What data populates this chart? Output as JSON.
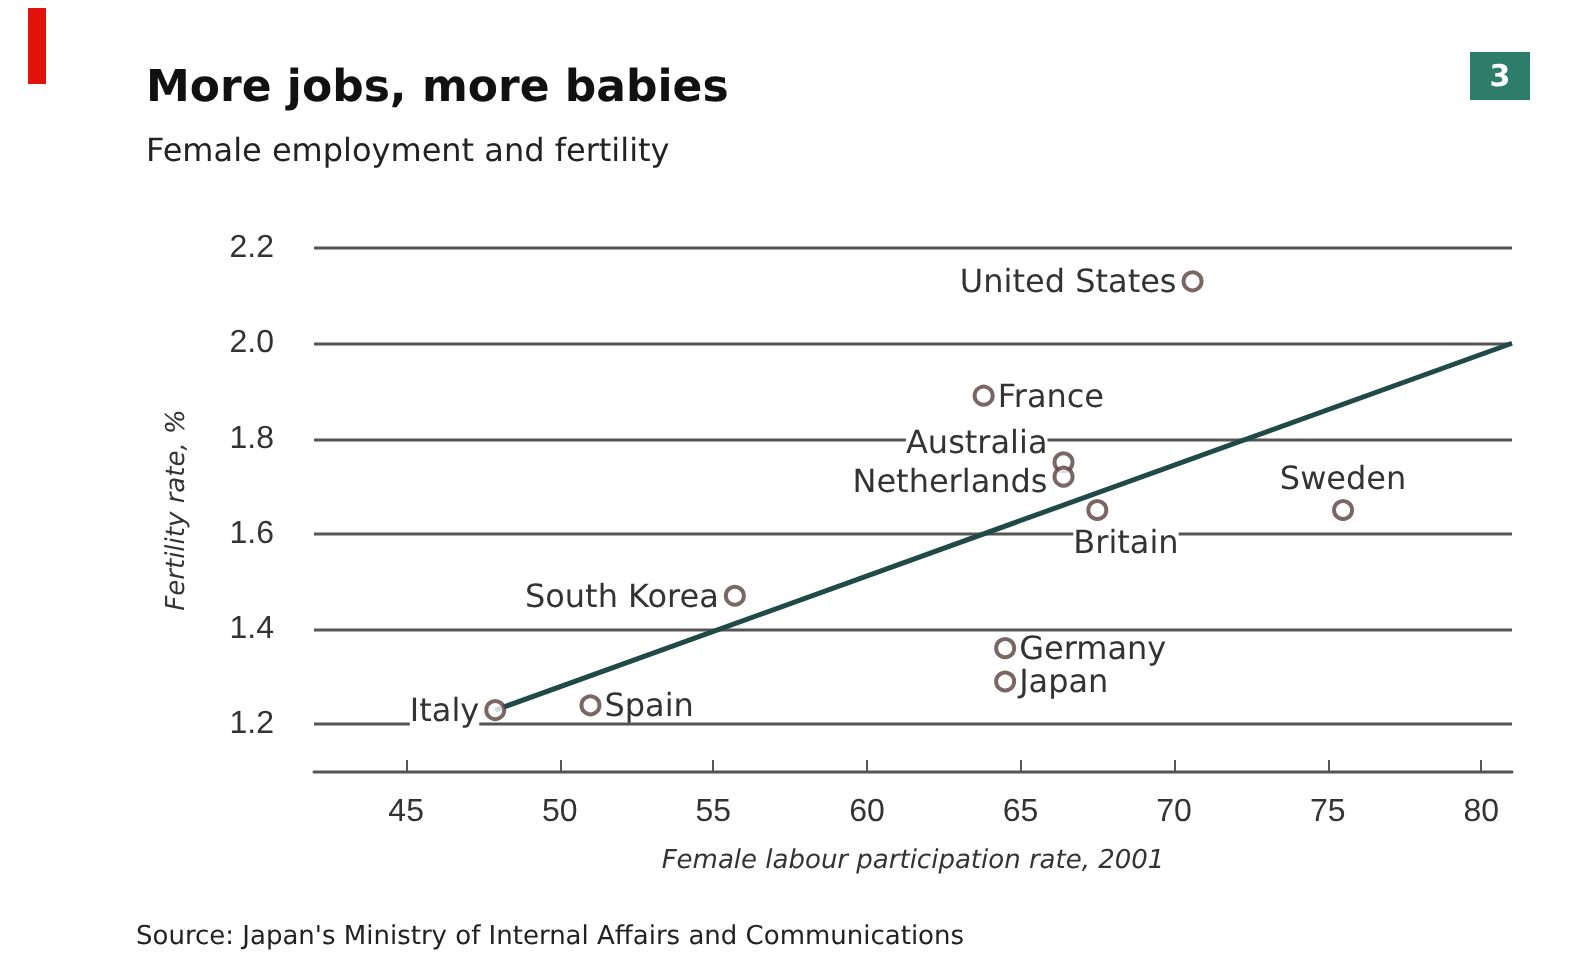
{
  "chart_data": {
    "type": "scatter",
    "title": "More jobs, more babies",
    "subtitle": "Female employment and fertility",
    "xlabel": "Female labour participation rate, 2001",
    "ylabel": "Fertility rate, %",
    "x": [
      70.6,
      63.8,
      66.4,
      66.4,
      67.5,
      75.5,
      55.7,
      64.5,
      64.5,
      47.9,
      51.0
    ],
    "series": [
      {
        "color": "#5a4040",
        "values": [
          2.13,
          1.89,
          1.75,
          1.72,
          1.65,
          1.65,
          1.47,
          1.36,
          1.29,
          1.23,
          1.24
        ]
      },
      {
        "type": "line",
        "color": "#1f4a45",
        "marker": "none",
        "x": [
          47.9,
          81
        ],
        "values": [
          1.23,
          2.0
        ]
      }
    ],
    "annotations": [
      {
        "text": "United States",
        "x": 70.6,
        "y": 2.13
      },
      {
        "text": "France",
        "x": 63.8,
        "y": 1.89
      },
      {
        "text": "Australia",
        "x": 66.4,
        "y": 1.75
      },
      {
        "text": "Netherlands",
        "x": 66.4,
        "y": 1.72
      },
      {
        "text": "Britain",
        "x": 67.5,
        "y": 1.65
      },
      {
        "text": "Sweden",
        "x": 75.5,
        "y": 1.65
      },
      {
        "text": "South Korea",
        "x": 55.7,
        "y": 1.47
      },
      {
        "text": "Germany",
        "x": 64.5,
        "y": 1.36
      },
      {
        "text": "Japan",
        "x": 64.5,
        "y": 1.29
      },
      {
        "text": "Italy",
        "x": 47.9,
        "y": 1.23
      },
      {
        "text": "Spain",
        "x": 51.0,
        "y": 1.24
      },
      "3",
      "Source: Japan's Ministry of Internal Affairs and Communications"
    ],
    "xlim": [
      42,
      81
    ],
    "xticks": [
      45,
      50,
      55,
      60,
      65,
      70,
      75,
      80
    ],
    "ylim": [
      1.1,
      2.2
    ],
    "yticks": [
      1.2,
      1.4,
      1.6,
      1.8,
      {
        "value": 2,
        "label": "2.0"
      },
      2.2
    ],
    "grid": "y",
    "marker": "circle"
  }
}
